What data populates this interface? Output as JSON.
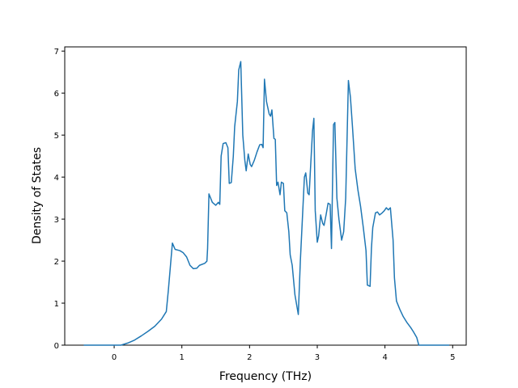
{
  "chart_data": {
    "type": "line",
    "x_label": "Frequency (THz)",
    "y_label": "Density of States",
    "xlim": [
      -0.73,
      5.2
    ],
    "ylim": [
      0,
      7.1
    ],
    "xticks": [
      0,
      1,
      2,
      3,
      4,
      5
    ],
    "yticks": [
      0,
      1,
      2,
      3,
      4,
      5,
      6,
      7
    ],
    "x": [
      -0.45,
      0.1,
      0.2,
      0.3,
      0.4,
      0.5,
      0.6,
      0.7,
      0.77,
      0.8,
      0.86,
      0.9,
      0.97,
      1.02,
      1.07,
      1.12,
      1.17,
      1.22,
      1.26,
      1.34,
      1.37,
      1.38,
      1.4,
      1.45,
      1.5,
      1.54,
      1.56,
      1.58,
      1.61,
      1.65,
      1.68,
      1.7,
      1.73,
      1.76,
      1.78,
      1.82,
      1.84,
      1.87,
      1.9,
      1.93,
      1.95,
      1.98,
      2.01,
      2.03,
      2.07,
      2.11,
      2.15,
      2.18,
      2.2,
      2.22,
      2.25,
      2.29,
      2.31,
      2.33,
      2.36,
      2.38,
      2.4,
      2.42,
      2.45,
      2.47,
      2.5,
      2.52,
      2.55,
      2.58,
      2.6,
      2.63,
      2.67,
      2.72,
      2.75,
      2.78,
      2.81,
      2.83,
      2.86,
      2.88,
      2.9,
      2.93,
      2.95,
      2.97,
      3.0,
      3.02,
      3.05,
      3.08,
      3.1,
      3.13,
      3.16,
      3.19,
      3.21,
      3.24,
      3.26,
      3.29,
      3.32,
      3.36,
      3.39,
      3.42,
      3.46,
      3.49,
      3.52,
      3.56,
      3.6,
      3.64,
      3.68,
      3.72,
      3.74,
      3.78,
      3.8,
      3.82,
      3.86,
      3.89,
      3.92,
      3.96,
      3.99,
      4.02,
      4.05,
      4.08,
      4.12,
      4.14,
      4.17,
      4.22,
      4.27,
      4.32,
      4.38,
      4.42,
      4.47,
      4.5,
      4.95
    ],
    "series": [
      {
        "color": "#1f77b4",
        "values": [
          0,
          0,
          0.05,
          0.12,
          0.22,
          0.33,
          0.45,
          0.62,
          0.8,
          1.3,
          2.43,
          2.28,
          2.25,
          2.2,
          2.1,
          1.9,
          1.82,
          1.83,
          1.9,
          1.95,
          2.0,
          2.3,
          3.6,
          3.4,
          3.33,
          3.4,
          3.35,
          4.5,
          4.8,
          4.82,
          4.7,
          3.85,
          3.87,
          4.5,
          5.2,
          5.8,
          6.55,
          6.75,
          5.0,
          4.4,
          4.15,
          4.55,
          4.3,
          4.25,
          4.4,
          4.6,
          4.77,
          4.78,
          4.7,
          6.33,
          5.8,
          5.5,
          5.45,
          5.6,
          4.92,
          4.9,
          3.8,
          3.88,
          3.58,
          3.88,
          3.85,
          3.2,
          3.15,
          2.7,
          2.15,
          1.9,
          1.2,
          0.73,
          2.0,
          3.0,
          4.0,
          4.1,
          3.62,
          3.58,
          4.2,
          5.1,
          5.4,
          3.2,
          2.45,
          2.6,
          3.1,
          2.9,
          2.85,
          3.1,
          3.38,
          3.35,
          2.3,
          5.25,
          5.3,
          3.5,
          3.0,
          2.5,
          2.7,
          3.5,
          6.3,
          5.9,
          5.2,
          4.2,
          3.7,
          3.3,
          2.8,
          2.25,
          1.43,
          1.4,
          2.3,
          2.8,
          3.15,
          3.17,
          3.1,
          3.15,
          3.2,
          3.27,
          3.22,
          3.27,
          2.5,
          1.6,
          1.05,
          0.85,
          0.68,
          0.55,
          0.42,
          0.32,
          0.18,
          0,
          0
        ]
      }
    ]
  }
}
